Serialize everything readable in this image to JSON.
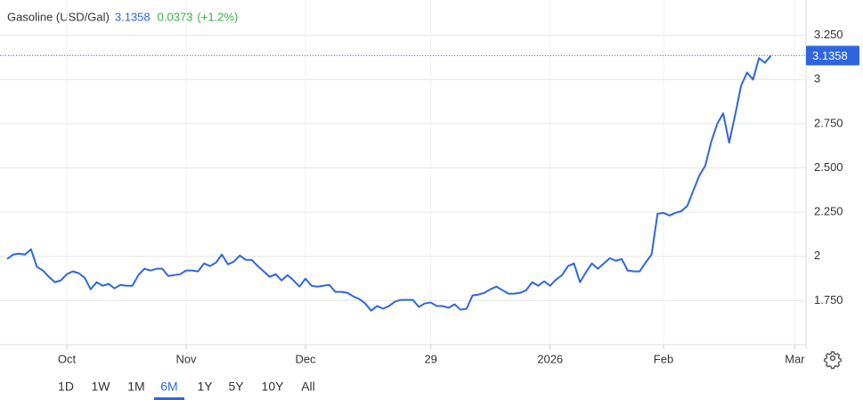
{
  "chart_data": {
    "type": "line",
    "title": "Gasoline (USD/Gal)",
    "change": 0.0373,
    "change_percent": "(+1.2%)",
    "color": "#2f66e0",
    "change_color": "#3aad48",
    "grid": true,
    "last_value_line": true,
    "categories": [
      null,
      null,
      null,
      null,
      null,
      null,
      null,
      null,
      null,
      null,
      "Oct",
      null,
      null,
      null,
      null,
      null,
      null,
      null,
      null,
      null,
      null,
      null,
      null,
      null,
      null,
      null,
      null,
      null,
      null,
      null,
      "Nov",
      null,
      null,
      null,
      null,
      null,
      null,
      null,
      null,
      null,
      null,
      null,
      null,
      null,
      null,
      null,
      null,
      null,
      null,
      null,
      "Dec",
      null,
      null,
      null,
      null,
      null,
      null,
      null,
      null,
      null,
      null,
      null,
      null,
      null,
      null,
      null,
      null,
      null,
      null,
      null,
      null,
      "29",
      null,
      null,
      null,
      null,
      null,
      null,
      null,
      null,
      null,
      null,
      null,
      null,
      null,
      null,
      null,
      null,
      null,
      null,
      null,
      "2026",
      null,
      null,
      null,
      null,
      null,
      null,
      null,
      null,
      null,
      null,
      null,
      null,
      null,
      null,
      null,
      null,
      null,
      null,
      "Feb",
      null,
      null,
      null,
      null,
      null,
      null,
      null,
      null,
      null,
      null,
      null,
      null,
      null,
      null,
      null,
      null,
      null,
      null,
      null,
      null,
      null,
      "Mar"
    ],
    "values": [
      1.985,
      2.01,
      2.015,
      2.01,
      2.04,
      1.94,
      1.92,
      1.884,
      1.854,
      1.864,
      1.899,
      1.915,
      1.905,
      1.879,
      1.814,
      1.854,
      1.834,
      1.844,
      1.819,
      1.839,
      1.834,
      1.834,
      1.894,
      1.93,
      1.92,
      1.93,
      1.93,
      1.889,
      1.894,
      1.899,
      1.92,
      1.92,
      1.915,
      1.96,
      1.945,
      1.965,
      2.01,
      1.955,
      1.97,
      2.005,
      1.98,
      1.98,
      1.945,
      1.915,
      1.884,
      1.899,
      1.864,
      1.894,
      1.864,
      1.829,
      1.874,
      1.834,
      1.829,
      1.834,
      1.839,
      1.799,
      1.799,
      1.794,
      1.774,
      1.759,
      1.734,
      1.693,
      1.719,
      1.704,
      1.719,
      1.744,
      1.754,
      1.754,
      1.754,
      1.714,
      1.734,
      1.739,
      1.719,
      1.719,
      1.709,
      1.729,
      1.698,
      1.704,
      1.779,
      1.784,
      1.794,
      1.814,
      1.829,
      1.809,
      1.789,
      1.789,
      1.794,
      1.809,
      1.854,
      1.834,
      1.859,
      1.834,
      1.869,
      1.894,
      1.945,
      1.96,
      1.854,
      1.91,
      1.96,
      1.93,
      1.96,
      1.99,
      1.975,
      1.985,
      1.92,
      1.915,
      1.915,
      1.965,
      2.01,
      2.241,
      2.246,
      2.231,
      2.246,
      2.256,
      2.286,
      2.372,
      2.457,
      2.513,
      2.648,
      2.749,
      2.809,
      2.643,
      2.799,
      2.965,
      3.04,
      3.0,
      3.121,
      3.095,
      3.1358,
      null,
      null,
      null,
      null
    ],
    "ylim": [
      1.5,
      3.45
    ],
    "yticks": [
      {
        "value": 1.75,
        "label": "1.750"
      },
      2,
      {
        "value": 2.25,
        "label": "2.250"
      },
      {
        "value": 2.5,
        "label": "2.500"
      },
      {
        "value": 2.75,
        "label": "2.750"
      },
      3,
      {
        "value": 3.25,
        "label": "3.250"
      }
    ]
  },
  "range_buttons": [
    "1D",
    "1W",
    "1M",
    "6M",
    "1Y",
    "5Y",
    "10Y",
    "All"
  ],
  "active_range": "6M"
}
